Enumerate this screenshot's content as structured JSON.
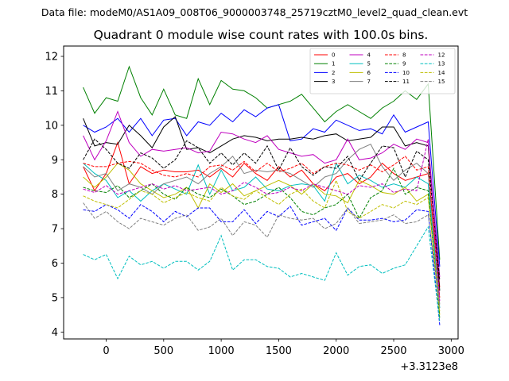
{
  "suptitle": "Data file: modeM0/AS1A09_008T06_9000003748_25719cztM0_level2_quad_clean.evt",
  "chart_data": {
    "type": "line",
    "title": "Quadrant 0 module wise count rates with 100.0s bins.",
    "x_offset_label": "+3.3123e8",
    "xlim": [
      -370,
      3060
    ],
    "ylim": [
      3.8,
      12.3
    ],
    "xticks": [
      0,
      500,
      1000,
      1500,
      2000,
      2500,
      3000
    ],
    "yticks": [
      4,
      5,
      6,
      7,
      8,
      9,
      10,
      11,
      12
    ],
    "legend_position": "upper right",
    "x": [
      -200,
      -100,
      0,
      100,
      200,
      300,
      400,
      500,
      600,
      700,
      800,
      900,
      1000,
      1100,
      1200,
      1300,
      1400,
      1500,
      1600,
      1700,
      1800,
      1900,
      2000,
      2100,
      2200,
      2300,
      2400,
      2500,
      2600,
      2700,
      2800,
      2900
    ],
    "series": [
      {
        "name": "0",
        "color": "#ff0000",
        "dash": "solid",
        "values": [
          8.8,
          8.1,
          8.6,
          9.5,
          8.3,
          8.8,
          8.6,
          8.7,
          8.65,
          8.65,
          8.7,
          8.5,
          8.75,
          8.5,
          8.9,
          8.6,
          8.4,
          8.8,
          8.5,
          8.7,
          8.3,
          8.1,
          8.5,
          8.6,
          8.3,
          8.5,
          8.9,
          8.6,
          8.4,
          8.5,
          8.6,
          5.3
        ]
      },
      {
        "name": "1",
        "color": "#008000",
        "dash": "solid",
        "values": [
          11.1,
          10.35,
          10.8,
          10.7,
          11.7,
          10.8,
          10.3,
          11.05,
          10.3,
          10.2,
          11.35,
          10.6,
          11.3,
          11.05,
          11.0,
          10.8,
          10.5,
          10.6,
          10.7,
          10.9,
          10.5,
          10.1,
          10.4,
          10.6,
          10.4,
          10.2,
          10.5,
          10.7,
          11.0,
          10.75,
          11.2,
          6.1
        ]
      },
      {
        "name": "2",
        "color": "#0000ff",
        "dash": "solid",
        "values": [
          10.0,
          9.8,
          9.95,
          10.2,
          9.8,
          10.2,
          9.7,
          10.15,
          10.2,
          9.7,
          10.1,
          10.0,
          10.35,
          10.1,
          10.45,
          10.25,
          10.5,
          10.6,
          9.55,
          9.6,
          9.9,
          9.8,
          10.15,
          10.0,
          9.85,
          9.9,
          9.75,
          10.3,
          9.8,
          9.95,
          10.1,
          5.9
        ]
      },
      {
        "name": "3",
        "color": "#000000",
        "dash": "solid",
        "values": [
          10.2,
          9.4,
          9.5,
          9.45,
          10.0,
          9.7,
          9.35,
          9.95,
          10.25,
          9.3,
          9.35,
          9.2,
          9.4,
          9.6,
          9.7,
          9.65,
          9.55,
          9.6,
          9.6,
          9.65,
          9.6,
          9.7,
          9.75,
          9.55,
          9.6,
          9.65,
          9.95,
          9.95,
          9.4,
          9.5,
          9.4,
          5.2
        ]
      },
      {
        "name": "4",
        "color": "#bf00bf",
        "dash": "solid",
        "values": [
          9.7,
          9.0,
          9.55,
          10.4,
          9.5,
          9.1,
          9.3,
          9.25,
          9.3,
          9.35,
          9.2,
          9.25,
          9.8,
          9.75,
          9.6,
          9.5,
          9.7,
          9.3,
          9.2,
          9.1,
          9.15,
          8.9,
          9.0,
          9.6,
          9.0,
          9.05,
          9.2,
          9.45,
          9.3,
          9.6,
          9.5,
          5.6
        ]
      },
      {
        "name": "5",
        "color": "#00bfbf",
        "dash": "solid",
        "values": [
          8.9,
          8.6,
          8.4,
          7.9,
          8.1,
          7.8,
          8.1,
          8.3,
          8.15,
          8.0,
          8.85,
          8.0,
          8.7,
          8.1,
          8.2,
          8.5,
          8.15,
          8.1,
          8.25,
          8.3,
          8.25,
          7.8,
          8.9,
          8.3,
          8.55,
          8.4,
          8.2,
          8.3,
          8.2,
          8.5,
          8.3,
          4.7
        ]
      },
      {
        "name": "6",
        "color": "#bfbf00",
        "dash": "solid",
        "values": [
          8.5,
          8.2,
          8.5,
          8.9,
          8.7,
          8.3,
          8.1,
          7.9,
          8.0,
          8.2,
          7.6,
          8.3,
          8.05,
          8.3,
          7.95,
          8.1,
          8.25,
          8.4,
          8.25,
          8.0,
          8.3,
          8.0,
          7.95,
          7.75,
          8.4,
          8.25,
          8.05,
          8.0,
          8.2,
          7.8,
          8.0,
          4.5
        ]
      },
      {
        "name": "7",
        "color": "#808080",
        "dash": "solid",
        "values": [
          8.8,
          8.5,
          8.6,
          8.1,
          8.3,
          8.2,
          8.0,
          8.3,
          8.4,
          8.5,
          8.3,
          8.6,
          8.8,
          9.1,
          8.6,
          8.7,
          8.65,
          8.7,
          8.6,
          8.4,
          8.2,
          8.5,
          8.6,
          9.0,
          9.3,
          9.45,
          8.8,
          8.4,
          8.7,
          8.9,
          8.6,
          4.8
        ]
      },
      {
        "name": "8",
        "color": "#ff0000",
        "dash": "dashed",
        "values": [
          8.9,
          8.8,
          8.8,
          8.9,
          8.95,
          8.9,
          8.7,
          8.55,
          8.5,
          8.6,
          8.5,
          8.8,
          8.85,
          8.7,
          8.95,
          8.65,
          8.9,
          8.65,
          8.75,
          8.9,
          8.6,
          8.8,
          8.9,
          8.85,
          8.7,
          8.85,
          8.65,
          8.85,
          9.1,
          8.7,
          8.8,
          5.0
        ]
      },
      {
        "name": "9",
        "color": "#008000",
        "dash": "dashed",
        "values": [
          8.2,
          8.1,
          8.05,
          8.25,
          7.9,
          8.1,
          8.3,
          8.0,
          7.85,
          8.2,
          8.0,
          7.9,
          8.15,
          7.95,
          7.7,
          7.8,
          8.0,
          8.2,
          7.9,
          7.5,
          7.4,
          7.6,
          7.7,
          8.0,
          7.3,
          7.9,
          8.1,
          8.75,
          8.0,
          8.2,
          8.1,
          4.4
        ]
      },
      {
        "name": "10",
        "color": "#0000ff",
        "dash": "dashed",
        "values": [
          7.55,
          7.5,
          7.7,
          7.55,
          7.3,
          7.7,
          7.5,
          7.2,
          7.5,
          7.35,
          7.6,
          7.6,
          7.2,
          7.2,
          7.55,
          7.15,
          7.5,
          7.35,
          7.65,
          7.1,
          7.2,
          7.3,
          6.95,
          7.6,
          7.25,
          7.25,
          7.3,
          7.2,
          7.25,
          7.55,
          7.5,
          4.2
        ]
      },
      {
        "name": "11",
        "color": "#000000",
        "dash": "dashed",
        "values": [
          9.0,
          9.6,
          9.3,
          8.9,
          8.75,
          9.2,
          9.05,
          8.75,
          9.0,
          9.55,
          9.35,
          8.9,
          9.2,
          8.85,
          9.2,
          8.9,
          9.4,
          8.7,
          9.35,
          8.8,
          8.55,
          8.8,
          8.75,
          9.1,
          8.4,
          8.9,
          9.4,
          9.35,
          8.5,
          9.25,
          9.0,
          5.5
        ]
      },
      {
        "name": "12",
        "color": "#bf00bf",
        "dash": "dashed",
        "values": [
          8.15,
          8.05,
          8.25,
          8.0,
          8.1,
          8.2,
          8.3,
          8.15,
          8.25,
          8.1,
          8.15,
          8.2,
          8.0,
          8.1,
          8.35,
          8.2,
          8.0,
          8.05,
          8.2,
          8.1,
          8.3,
          8.2,
          8.1,
          8.0,
          8.25,
          8.2,
          8.3,
          8.05,
          8.15,
          8.1,
          9.6,
          4.9
        ]
      },
      {
        "name": "13",
        "color": "#00bfbf",
        "dash": "dashed",
        "values": [
          6.25,
          6.1,
          6.25,
          5.55,
          6.2,
          5.95,
          6.05,
          5.85,
          6.05,
          6.05,
          5.8,
          6.05,
          6.8,
          5.8,
          6.1,
          6.1,
          5.9,
          5.85,
          5.6,
          5.7,
          5.6,
          5.5,
          6.3,
          5.65,
          5.9,
          5.95,
          5.7,
          5.85,
          5.95,
          6.5,
          7.05,
          4.3
        ]
      },
      {
        "name": "14",
        "color": "#bfbf00",
        "dash": "dashed",
        "values": [
          7.95,
          7.8,
          7.7,
          7.6,
          7.85,
          8.1,
          8.0,
          7.75,
          7.9,
          8.05,
          7.9,
          7.8,
          8.2,
          7.95,
          7.85,
          8.1,
          7.9,
          7.7,
          8.0,
          8.15,
          7.8,
          7.6,
          8.4,
          7.5,
          7.3,
          7.5,
          7.7,
          7.6,
          7.8,
          7.7,
          7.9,
          4.6
        ]
      },
      {
        "name": "15",
        "color": "#808080",
        "dash": "dashed",
        "values": [
          7.75,
          7.3,
          7.5,
          7.2,
          7.0,
          7.3,
          7.2,
          7.1,
          7.3,
          7.4,
          6.95,
          7.05,
          7.3,
          6.8,
          7.2,
          7.1,
          6.75,
          7.4,
          7.3,
          7.25,
          7.3,
          7.0,
          7.15,
          7.6,
          7.15,
          7.2,
          7.25,
          7.4,
          7.15,
          7.2,
          7.4,
          4.7
        ]
      }
    ]
  }
}
